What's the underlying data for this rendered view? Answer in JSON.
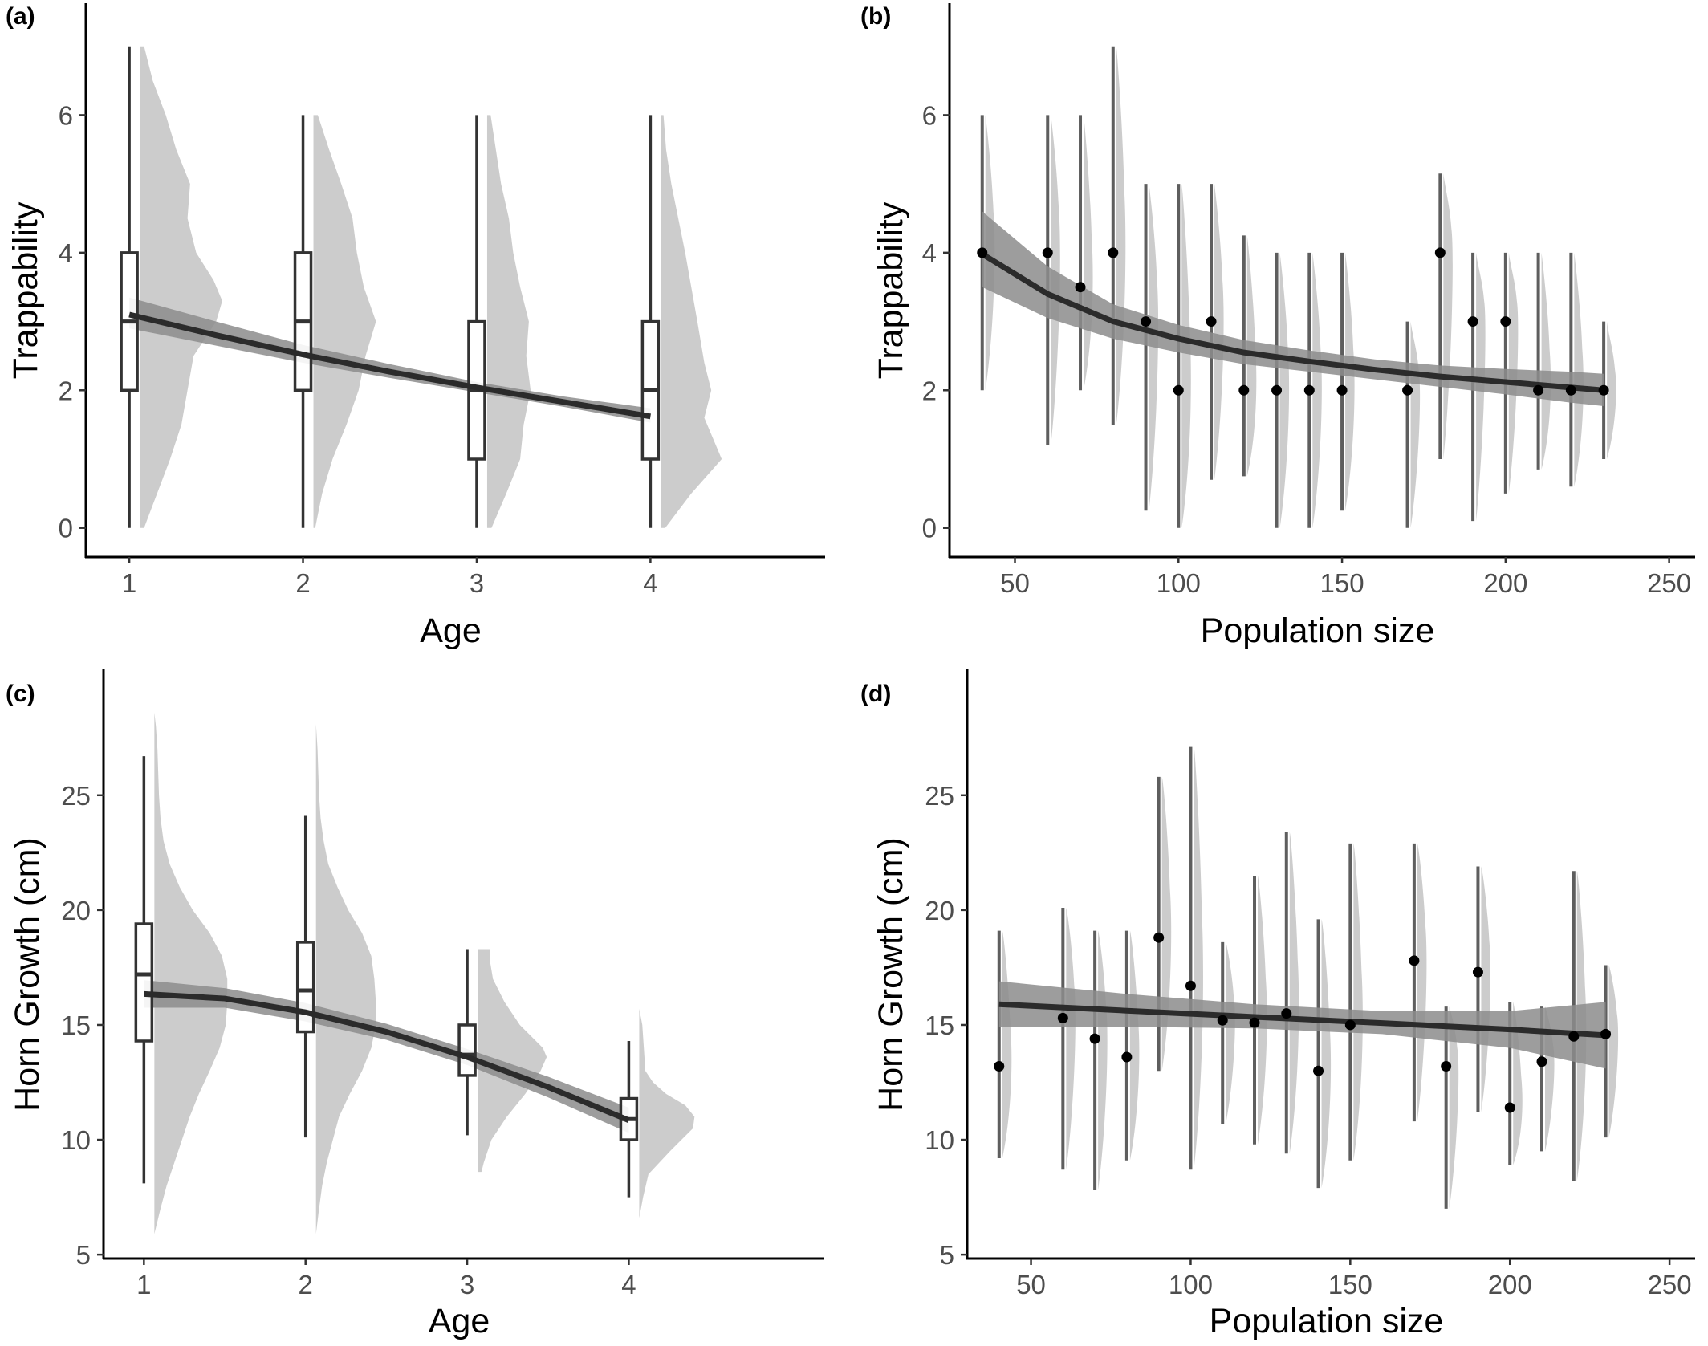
{
  "colors": {
    "axis": "#000000",
    "tick_text": "#4d4d4d",
    "density": "#cccccc",
    "ribbon": "#8c8c8c",
    "fit_line": "#2b2b2b",
    "bar": "#5e5e5e",
    "point": "#000000"
  },
  "chart_data": [
    {
      "panel_label": "(a)",
      "type": "box",
      "xlabel": "Age",
      "ylabel": "Trappability",
      "xlim": [
        0.75,
        4.95
      ],
      "ylim": [
        -0.4,
        7.3
      ],
      "xticks": [
        1,
        2,
        3,
        4
      ],
      "yticks": [
        0,
        2,
        4,
        6
      ],
      "grid": false,
      "legend": "none",
      "boxes": [
        {
          "x": 1,
          "whisker_low": 0,
          "q1": 2,
          "median": 3,
          "q3": 4,
          "whisker_high": 7
        },
        {
          "x": 2,
          "whisker_low": 0,
          "q1": 2,
          "median": 3,
          "q3": 4,
          "whisker_high": 6
        },
        {
          "x": 3,
          "whisker_low": 0,
          "q1": 1,
          "median": 2,
          "q3": 3,
          "whisker_high": 6
        },
        {
          "x": 4,
          "whisker_low": 0,
          "q1": 1,
          "median": 2,
          "q3": 3,
          "whisker_high": 6
        }
      ],
      "densities": [
        {
          "x": 1,
          "ymin": 0,
          "ymax": 7,
          "width": 1.0,
          "profile": [
            [
              0,
              0.05
            ],
            [
              0.5,
              0.2
            ],
            [
              1,
              0.35
            ],
            [
              1.5,
              0.48
            ],
            [
              2,
              0.55
            ],
            [
              2.5,
              0.62
            ],
            [
              3,
              0.88
            ],
            [
              3.3,
              0.95
            ],
            [
              3.6,
              0.85
            ],
            [
              4,
              0.65
            ],
            [
              4.5,
              0.55
            ],
            [
              5,
              0.58
            ],
            [
              5.5,
              0.42
            ],
            [
              6,
              0.3
            ],
            [
              6.5,
              0.15
            ],
            [
              7,
              0.05
            ]
          ]
        },
        {
          "x": 2,
          "ymin": 0,
          "ymax": 6,
          "width": 1.0,
          "profile": [
            [
              0,
              0.02
            ],
            [
              0.5,
              0.1
            ],
            [
              1,
              0.22
            ],
            [
              1.5,
              0.38
            ],
            [
              2,
              0.52
            ],
            [
              2.5,
              0.6
            ],
            [
              3,
              0.72
            ],
            [
              3.5,
              0.58
            ],
            [
              4,
              0.5
            ],
            [
              4.5,
              0.45
            ],
            [
              5,
              0.32
            ],
            [
              5.5,
              0.18
            ],
            [
              6,
              0.05
            ]
          ]
        },
        {
          "x": 3,
          "ymin": 0,
          "ymax": 6,
          "width": 1.0,
          "profile": [
            [
              0,
              0.05
            ],
            [
              0.5,
              0.22
            ],
            [
              1,
              0.38
            ],
            [
              1.5,
              0.42
            ],
            [
              2,
              0.5
            ],
            [
              2.5,
              0.45
            ],
            [
              3,
              0.48
            ],
            [
              3.5,
              0.38
            ],
            [
              4,
              0.3
            ],
            [
              4.5,
              0.25
            ],
            [
              5,
              0.16
            ],
            [
              5.5,
              0.1
            ],
            [
              6,
              0.04
            ]
          ]
        },
        {
          "x": 4,
          "ymin": 0,
          "ymax": 6,
          "width": 1.0,
          "profile": [
            [
              0,
              0.05
            ],
            [
              0.5,
              0.35
            ],
            [
              1,
              0.7
            ],
            [
              1.3,
              0.6
            ],
            [
              1.6,
              0.5
            ],
            [
              2,
              0.58
            ],
            [
              2.4,
              0.5
            ],
            [
              3,
              0.42
            ],
            [
              3.5,
              0.35
            ],
            [
              4,
              0.28
            ],
            [
              4.5,
              0.2
            ],
            [
              5,
              0.12
            ],
            [
              5.5,
              0.06
            ],
            [
              6,
              0.03
            ]
          ]
        }
      ],
      "fit": {
        "x": [
          1,
          1.5,
          2,
          2.5,
          3,
          3.5,
          4
        ],
        "y": [
          3.1,
          2.8,
          2.52,
          2.27,
          2.04,
          1.83,
          1.62
        ],
        "lower": [
          2.9,
          2.65,
          2.4,
          2.18,
          1.97,
          1.76,
          1.53
        ],
        "upper": [
          3.35,
          3.0,
          2.66,
          2.38,
          2.12,
          1.91,
          1.74
        ]
      }
    },
    {
      "panel_label": "(b)",
      "type": "scatter",
      "xlabel": "Population size",
      "ylabel": "Trappability",
      "xlim": [
        30,
        255
      ],
      "ylim": [
        -0.4,
        7.3
      ],
      "xticks": [
        50,
        100,
        150,
        200,
        250
      ],
      "yticks": [
        0,
        2,
        4,
        6
      ],
      "grid": false,
      "legend": "none",
      "points": [
        {
          "x": 40,
          "y": 4,
          "low": 2,
          "high": 6
        },
        {
          "x": 60,
          "y": 4,
          "low": 1.2,
          "high": 6
        },
        {
          "x": 70,
          "y": 3.5,
          "low": 2,
          "high": 6
        },
        {
          "x": 80,
          "y": 4,
          "low": 1.5,
          "high": 7
        },
        {
          "x": 90,
          "y": 3,
          "low": 0.25,
          "high": 5
        },
        {
          "x": 100,
          "y": 2,
          "low": 0,
          "high": 5
        },
        {
          "x": 110,
          "y": 3,
          "low": 0.7,
          "high": 5
        },
        {
          "x": 120,
          "y": 2,
          "low": 0.75,
          "high": 4.25
        },
        {
          "x": 130,
          "y": 2,
          "low": 0,
          "high": 4
        },
        {
          "x": 140,
          "y": 2,
          "low": 0,
          "high": 4
        },
        {
          "x": 150,
          "y": 2,
          "low": 0.25,
          "high": 4
        },
        {
          "x": 170,
          "y": 2,
          "low": 0,
          "high": 3
        },
        {
          "x": 180,
          "y": 4,
          "low": 1,
          "high": 5.15
        },
        {
          "x": 190,
          "y": 3,
          "low": 0.1,
          "high": 4
        },
        {
          "x": 200,
          "y": 3,
          "low": 0.5,
          "high": 4
        },
        {
          "x": 210,
          "y": 2,
          "low": 0.85,
          "high": 4
        },
        {
          "x": 220,
          "y": 2,
          "low": 0.6,
          "high": 4
        },
        {
          "x": 230,
          "y": 2,
          "low": 1,
          "high": 3
        }
      ],
      "fit": {
        "x": [
          40,
          60,
          80,
          100,
          120,
          140,
          160,
          180,
          200,
          220,
          230
        ],
        "y": [
          3.98,
          3.4,
          3.0,
          2.75,
          2.55,
          2.42,
          2.3,
          2.2,
          2.12,
          2.04,
          2.0
        ],
        "lower": [
          3.5,
          3.05,
          2.75,
          2.55,
          2.38,
          2.27,
          2.16,
          2.05,
          1.94,
          1.82,
          1.77
        ],
        "upper": [
          4.6,
          3.8,
          3.25,
          2.95,
          2.73,
          2.58,
          2.45,
          2.36,
          2.31,
          2.27,
          2.24
        ]
      }
    },
    {
      "panel_label": "(c)",
      "type": "box",
      "xlabel": "Age",
      "ylabel": "Horn Growth (cm)",
      "xlim": [
        0.75,
        5.15
      ],
      "ylim": [
        4.9,
        29.5
      ],
      "xticks": [
        1,
        2,
        3,
        4
      ],
      "yticks": [
        5,
        10,
        15,
        20,
        25
      ],
      "grid": false,
      "legend": "none",
      "boxes": [
        {
          "x": 1,
          "whisker_low": 8.1,
          "q1": 14.3,
          "median": 17.2,
          "q3": 19.4,
          "whisker_high": 26.7
        },
        {
          "x": 2,
          "whisker_low": 10.1,
          "q1": 14.7,
          "median": 16.5,
          "q3": 18.6,
          "whisker_high": 24.1
        },
        {
          "x": 3,
          "whisker_low": 10.2,
          "q1": 12.8,
          "median": 13.7,
          "q3": 15.0,
          "whisker_high": 18.3
        },
        {
          "x": 4,
          "whisker_low": 7.5,
          "q1": 10.0,
          "median": 10.9,
          "q3": 11.8,
          "whisker_high": 14.3
        }
      ],
      "densities": [
        {
          "x": 1,
          "ymin": 5.9,
          "ymax": 28.6,
          "width": 0.95,
          "profile": [
            [
              5.9,
              0.0
            ],
            [
              7,
              0.08
            ],
            [
              8,
              0.16
            ],
            [
              9,
              0.26
            ],
            [
              10,
              0.36
            ],
            [
              11,
              0.46
            ],
            [
              12,
              0.58
            ],
            [
              13,
              0.72
            ],
            [
              14,
              0.85
            ],
            [
              15,
              0.93
            ],
            [
              16,
              0.95
            ],
            [
              17,
              0.95
            ],
            [
              18,
              0.88
            ],
            [
              19,
              0.72
            ],
            [
              20,
              0.5
            ],
            [
              21,
              0.33
            ],
            [
              22,
              0.2
            ],
            [
              23,
              0.12
            ],
            [
              24,
              0.08
            ],
            [
              25,
              0.06
            ],
            [
              26,
              0.05
            ],
            [
              27,
              0.04
            ],
            [
              28,
              0.02
            ],
            [
              28.6,
              0.0
            ]
          ]
        },
        {
          "x": 2,
          "ymin": 5.9,
          "ymax": 28.1,
          "width": 0.95,
          "profile": [
            [
              5.9,
              0.0
            ],
            [
              7,
              0.04
            ],
            [
              8,
              0.08
            ],
            [
              9,
              0.14
            ],
            [
              10,
              0.22
            ],
            [
              11,
              0.3
            ],
            [
              12,
              0.44
            ],
            [
              13,
              0.6
            ],
            [
              14,
              0.72
            ],
            [
              15,
              0.78
            ],
            [
              16,
              0.78
            ],
            [
              17,
              0.76
            ],
            [
              18,
              0.72
            ],
            [
              19,
              0.6
            ],
            [
              20,
              0.42
            ],
            [
              21,
              0.28
            ],
            [
              22,
              0.16
            ],
            [
              23,
              0.1
            ],
            [
              24,
              0.06
            ],
            [
              25,
              0.04
            ],
            [
              26,
              0.03
            ],
            [
              27,
              0.02
            ],
            [
              28.1,
              0.0
            ]
          ]
        },
        {
          "x": 3,
          "ymin": 8.6,
          "ymax": 18.3,
          "width": 0.95,
          "profile": [
            [
              8.6,
              0.05
            ],
            [
              9,
              0.08
            ],
            [
              10,
              0.18
            ],
            [
              11,
              0.38
            ],
            [
              12,
              0.62
            ],
            [
              13,
              0.82
            ],
            [
              13.6,
              0.9
            ],
            [
              14,
              0.85
            ],
            [
              15,
              0.55
            ],
            [
              16,
              0.35
            ],
            [
              17,
              0.2
            ],
            [
              17.8,
              0.16
            ],
            [
              18.3,
              0.16
            ]
          ]
        },
        {
          "x": 4,
          "ymin": 6.6,
          "ymax": 15.7,
          "width": 0.95,
          "profile": [
            [
              6.6,
              0.0
            ],
            [
              7.5,
              0.05
            ],
            [
              8.5,
              0.12
            ],
            [
              9.5,
              0.4
            ],
            [
              10,
              0.55
            ],
            [
              10.5,
              0.7
            ],
            [
              11,
              0.72
            ],
            [
              11.5,
              0.6
            ],
            [
              12,
              0.35
            ],
            [
              12.5,
              0.18
            ],
            [
              13,
              0.08
            ],
            [
              14,
              0.06
            ],
            [
              15,
              0.04
            ],
            [
              15.7,
              0.0
            ]
          ]
        }
      ],
      "fit": {
        "x": [
          1,
          1.5,
          2,
          2.5,
          3,
          3.5,
          4
        ],
        "y": [
          16.35,
          16.15,
          15.55,
          14.7,
          13.6,
          12.3,
          10.85
        ],
        "lower": [
          15.75,
          15.75,
          15.15,
          14.35,
          13.25,
          11.85,
          10.3
        ],
        "upper": [
          16.95,
          16.6,
          15.95,
          15.05,
          13.95,
          12.75,
          11.4
        ]
      }
    },
    {
      "panel_label": "(d)",
      "type": "scatter",
      "xlabel": "Population size",
      "ylabel": "Horn Growth (cm)",
      "xlim": [
        30,
        255
      ],
      "ylim": [
        4.9,
        29.5
      ],
      "xticks": [
        50,
        100,
        150,
        200,
        250
      ],
      "yticks": [
        5,
        10,
        15,
        20,
        25
      ],
      "grid": false,
      "legend": "none",
      "points": [
        {
          "x": 40,
          "y": 13.2,
          "low": 9.2,
          "high": 19.1
        },
        {
          "x": 60,
          "y": 15.3,
          "low": 8.7,
          "high": 20.1
        },
        {
          "x": 70,
          "y": 14.4,
          "low": 7.8,
          "high": 19.1
        },
        {
          "x": 80,
          "y": 13.6,
          "low": 9.1,
          "high": 19.1
        },
        {
          "x": 90,
          "y": 18.8,
          "low": 13.0,
          "high": 25.8
        },
        {
          "x": 100,
          "y": 16.7,
          "low": 8.7,
          "high": 27.1
        },
        {
          "x": 110,
          "y": 15.2,
          "low": 10.7,
          "high": 18.6
        },
        {
          "x": 120,
          "y": 15.1,
          "low": 9.8,
          "high": 21.5
        },
        {
          "x": 130,
          "y": 15.5,
          "low": 9.4,
          "high": 23.4
        },
        {
          "x": 140,
          "y": 13.0,
          "low": 7.9,
          "high": 19.6
        },
        {
          "x": 150,
          "y": 15.0,
          "low": 9.1,
          "high": 22.9
        },
        {
          "x": 170,
          "y": 17.8,
          "low": 10.8,
          "high": 22.9
        },
        {
          "x": 180,
          "y": 13.2,
          "low": 7.0,
          "high": 15.8
        },
        {
          "x": 190,
          "y": 17.3,
          "low": 11.2,
          "high": 21.9
        },
        {
          "x": 200,
          "y": 11.4,
          "low": 8.9,
          "high": 16.0
        },
        {
          "x": 210,
          "y": 13.4,
          "low": 9.5,
          "high": 15.8
        },
        {
          "x": 220,
          "y": 14.5,
          "low": 8.2,
          "high": 21.7
        },
        {
          "x": 230,
          "y": 14.6,
          "low": 10.1,
          "high": 17.6
        }
      ],
      "fit": {
        "x": [
          40,
          80,
          120,
          160,
          200,
          230
        ],
        "y": [
          15.9,
          15.62,
          15.35,
          15.08,
          14.8,
          14.55
        ],
        "lower": [
          14.9,
          14.92,
          14.85,
          14.6,
          14.0,
          13.1
        ],
        "upper": [
          16.9,
          16.35,
          15.9,
          15.6,
          15.6,
          16.0
        ]
      }
    }
  ]
}
